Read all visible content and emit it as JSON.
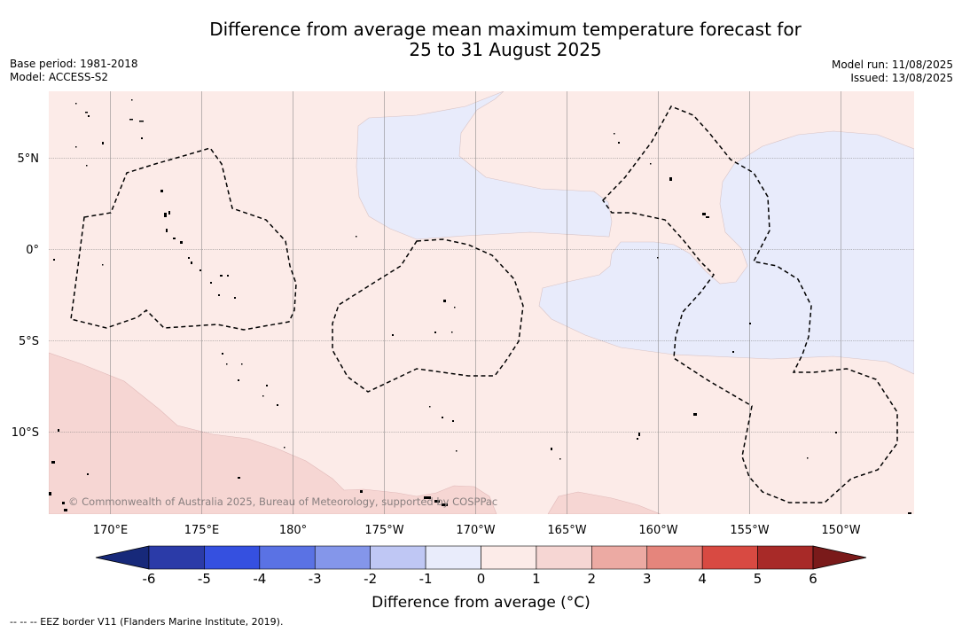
{
  "title": {
    "line1": "Difference from average mean maximum temperature forecast for",
    "line2": "25 to 31 August 2025"
  },
  "meta": {
    "base_period": "Base period: 1981-2018",
    "model": "Model: ACCESS-S2",
    "model_run": "Model run: 11/08/2025",
    "issued": "Issued: 13/08/2025"
  },
  "map": {
    "lat_labels": [
      "5°N",
      "0°",
      "5°S",
      "10°S"
    ],
    "lon_labels": [
      "170°E",
      "175°E",
      "180°",
      "175°W",
      "170°W",
      "165°W",
      "160°W",
      "155°W",
      "150°W"
    ],
    "copyright": "© Commonwealth of Australia 2025, Bureau of Meteorology, supported by COSPPac",
    "colors": {
      "plus_0_1": "#fcebe8",
      "plus_1_2": "#f6d6d3",
      "minus_1_0": "#e8ebfb",
      "land": "#000000",
      "eez_border": "#000000"
    }
  },
  "colorbar": {
    "ticks": [
      "-6",
      "-5",
      "-4",
      "-3",
      "-2",
      "-1",
      "0",
      "1",
      "2",
      "3",
      "4",
      "5",
      "6"
    ],
    "colors": [
      "#2b3ba8",
      "#3550e0",
      "#5a72e4",
      "#8496ea",
      "#bfc7f4",
      "#e9ecfb",
      "#fcebe8",
      "#f6d6d3",
      "#ecaaa3",
      "#e5857c",
      "#d84a42",
      "#a82a28"
    ],
    "under_color": "#17297a",
    "over_color": "#7a1a1a",
    "label": "Difference from average (°C)"
  },
  "footer": "--  --  -- EEZ border V11 (Flanders Marine Institute, 2019)."
}
